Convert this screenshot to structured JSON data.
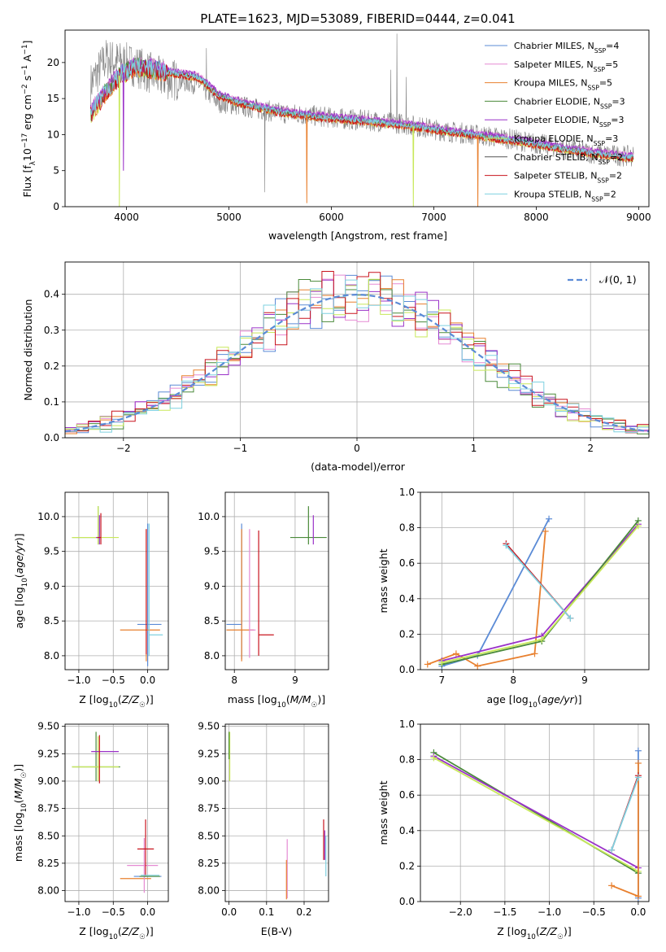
{
  "colors": {
    "chabrier_miles": "#5b8bd6",
    "salpeter_miles": "#e58ad3",
    "kroupa_miles": "#e8802f",
    "chabrier_elodie": "#4a8a3a",
    "salpeter_elodie": "#9a32c8",
    "kroupa_elodie": "#c8e85a",
    "chabrier_stelib": "#555555",
    "salpeter_stelib": "#c8141e",
    "kroupa_stelib": "#7fd1e0",
    "gauss": "#5b8bd6",
    "grid": "#b0b0b0"
  },
  "chart_data": [
    {
      "id": "spectrum",
      "type": "line",
      "title": "PLATE=1623, MJD=53089, FIBERID=0444, z=0.041",
      "xlabel": "wavelength [Angstrom, rest frame]",
      "ylabel": "Flux [f_λ10^-17 erg cm^-2 s^-1 A^-1]",
      "xlim": [
        3400,
        9100
      ],
      "ylim": [
        0,
        24.5
      ],
      "xticks": [
        "4000",
        "5000",
        "6000",
        "7000",
        "8000",
        "9000"
      ],
      "yticks": [
        "0",
        "5",
        "10",
        "15",
        "20"
      ],
      "grid": false,
      "legend": "top-right",
      "legend_entries": [
        "Chabrier MILES, N_SSP=4",
        "Salpeter MILES, N_SSP=5",
        "Kroupa MILES, N_SSP=5",
        "Chabrier ELODIE, N_SSP=3",
        "Salpeter ELODIE, N_SSP=3",
        "Kroupa ELODIE, N_SSP=3",
        "Chabrier STELIB, N_SSP=2",
        "Salpeter STELIB, N_SSP=2",
        "Kroupa STELIB, N_SSP=2"
      ],
      "data_continuum": {
        "x": [
          3650,
          3800,
          3950,
          4100,
          4300,
          4500,
          4700,
          4900,
          5100,
          5300,
          5500,
          5700,
          5900,
          6100,
          6300,
          6500,
          6700,
          6900,
          7100,
          7300,
          7500,
          7700,
          7900,
          8100,
          8300,
          8500,
          8700,
          8900
        ],
        "y": [
          17,
          20.5,
          20,
          19.5,
          18,
          17.5,
          17,
          14.5,
          14,
          13.5,
          13,
          12.8,
          12.5,
          12.2,
          12,
          11.8,
          11.5,
          11,
          10.5,
          10.2,
          9.8,
          9.5,
          9,
          8.5,
          8,
          7.5,
          7.2,
          7
        ]
      },
      "model_continuum": {
        "x": [
          3650,
          3800,
          3950,
          4100,
          4300,
          4500,
          4700,
          4900,
          5100,
          5300,
          5500,
          5700,
          5900,
          6100,
          6300,
          6500,
          6700,
          6900,
          7100,
          7300,
          7500,
          7700,
          7900,
          8100,
          8300,
          8500,
          8700,
          8900
        ],
        "y": [
          13,
          16,
          18.5,
          19.5,
          19,
          18.5,
          18,
          15.5,
          14.5,
          13.8,
          13.2,
          12.8,
          12.5,
          12.2,
          12,
          11.7,
          11.4,
          11,
          10.6,
          10.2,
          9.8,
          9.4,
          9,
          8.5,
          8,
          7.6,
          7.2,
          6.9
        ]
      },
      "model_dips": [
        {
          "x": 3930,
          "y": 0,
          "series": "kroupa_elodie"
        },
        {
          "x": 3970,
          "y": 5,
          "series": "salpeter_elodie"
        },
        {
          "x": 5760,
          "y": 0.5,
          "series": "kroupa_miles"
        },
        {
          "x": 6800,
          "y": 0,
          "series": "kroupa_elodie"
        },
        {
          "x": 7430,
          "y": 0,
          "series": "kroupa_miles"
        }
      ]
    },
    {
      "id": "residuals",
      "type": "line",
      "xlabel": "(data-model)/error",
      "ylabel": "Normed distribution",
      "xlim": [
        -2.5,
        2.5
      ],
      "ylim": [
        0,
        0.49
      ],
      "xticks": [
        "−2",
        "−1",
        "0",
        "1",
        "2"
      ],
      "yticks": [
        "0.0",
        "0.1",
        "0.2",
        "0.3",
        "0.4"
      ],
      "grid": true,
      "legend": "top-right",
      "legend_entries": [
        "𝒩(0, 1)"
      ],
      "gaussian": {
        "mean": 0,
        "sigma": 1
      }
    },
    {
      "id": "age_vs_Z",
      "type": "errorbar",
      "xlabel": "Z [log10(Z/Z☉)]",
      "ylabel": "age [log10(age/yr)]",
      "xlim": [
        -1.2,
        0.3
      ],
      "ylim": [
        7.8,
        10.35
      ],
      "xticks": [
        "−1.0",
        "−0.5",
        "0.0"
      ],
      "yticks": [
        "8.0",
        "8.5",
        "9.0",
        "9.5",
        "10.0"
      ],
      "grid": true,
      "points": [
        {
          "s": "chabrier_elodie",
          "x": -0.72,
          "y": 9.7,
          "xe": [
            0.38,
            0.0
          ],
          "ye": [
            0.1,
            0.45
          ]
        },
        {
          "s": "kroupa_elodie",
          "x": -0.72,
          "y": 9.7,
          "xe": [
            0.38,
            0.3
          ],
          "ye": [
            0.1,
            0.45
          ]
        },
        {
          "s": "salpeter_elodie",
          "x": -0.7,
          "y": 9.7,
          "xe": [
            0.05,
            0.0
          ],
          "ye": [
            0.1,
            0.32
          ]
        },
        {
          "s": "salpeter_stelib",
          "x": -0.68,
          "y": 9.7,
          "xe": [
            0.05,
            0.0
          ],
          "ye": [
            0.1,
            0.35
          ]
        },
        {
          "s": "chabrier_miles",
          "x": 0.0,
          "y": 8.45,
          "xe": [
            0.15,
            0.2
          ],
          "ye": [
            0.6,
            1.45
          ]
        },
        {
          "s": "kroupa_miles",
          "x": -0.02,
          "y": 8.37,
          "xe": [
            0.38,
            0.2
          ],
          "ye": [
            0.45,
            1.45
          ]
        },
        {
          "s": "kroupa_stelib",
          "x": 0.02,
          "y": 8.3,
          "xe": [
            0.0,
            0.2
          ],
          "ye": [
            0.3,
            1.6
          ]
        },
        {
          "s": "salpeter_stelib",
          "x": -0.02,
          "y": 8.37,
          "xe": [
            0.0,
            0.0
          ],
          "ye": [
            0.35,
            1.45
          ]
        }
      ]
    },
    {
      "id": "age_vs_mass",
      "type": "errorbar",
      "xlabel": "mass [log10(M/M☉)]",
      "ylabel": "",
      "xlim": [
        7.85,
        9.55
      ],
      "ylim": [
        7.8,
        10.35
      ],
      "xticks": [
        "8",
        "9"
      ],
      "yticks": [
        "8.0",
        "8.5",
        "9.0",
        "9.5",
        "10.0"
      ],
      "grid": true,
      "points": [
        {
          "s": "chabrier_miles",
          "x": 8.12,
          "y": 8.45,
          "xe": [
            0.25,
            0.0
          ],
          "ye": [
            0.5,
            1.45
          ]
        },
        {
          "s": "kroupa_miles",
          "x": 8.12,
          "y": 8.37,
          "xe": [
            0.25,
            0.2
          ],
          "ye": [
            0.45,
            1.45
          ]
        },
        {
          "s": "salpeter_miles",
          "x": 8.25,
          "y": 8.37,
          "xe": [
            0.0,
            0.1
          ],
          "ye": [
            0.4,
            1.45
          ]
        },
        {
          "s": "salpeter_stelib",
          "x": 8.4,
          "y": 8.3,
          "xe": [
            0.0,
            0.25
          ],
          "ye": [
            0.3,
            1.5
          ]
        },
        {
          "s": "chabrier_elodie",
          "x": 9.22,
          "y": 9.7,
          "xe": [
            0.3,
            0.3
          ],
          "ye": [
            0.1,
            0.45
          ]
        },
        {
          "s": "salpeter_elodie",
          "x": 9.3,
          "y": 9.7,
          "xe": [
            0.0,
            0.0
          ],
          "ye": [
            0.1,
            0.32
          ]
        }
      ]
    },
    {
      "id": "weight_vs_age",
      "type": "line",
      "xlabel": "age [log10(age/yr)]",
      "ylabel": "mass weight",
      "xlim": [
        6.7,
        9.9
      ],
      "ylim": [
        0,
        1.0
      ],
      "xticks": [
        "7",
        "8",
        "9"
      ],
      "yticks": [
        "0.0",
        "0.2",
        "0.4",
        "0.6",
        "0.8",
        "1.0"
      ],
      "grid": true,
      "series": [
        {
          "s": "chabrier_miles",
          "x": [
            7.0,
            7.5,
            8.5
          ],
          "y": [
            0.02,
            0.08,
            0.85
          ]
        },
        {
          "s": "kroupa_miles",
          "x": [
            6.8,
            7.2,
            7.5,
            8.3,
            8.45
          ],
          "y": [
            0.03,
            0.09,
            0.02,
            0.09,
            0.78
          ]
        },
        {
          "s": "salpeter_elodie",
          "x": [
            7.0,
            8.4,
            9.75
          ],
          "y": [
            0.05,
            0.19,
            0.82
          ]
        },
        {
          "s": "chabrier_elodie",
          "x": [
            7.0,
            8.4,
            9.75
          ],
          "y": [
            0.03,
            0.16,
            0.84
          ]
        },
        {
          "s": "kroupa_elodie",
          "x": [
            7.0,
            8.4,
            9.75
          ],
          "y": [
            0.04,
            0.17,
            0.81
          ]
        },
        {
          "s": "salpeter_stelib",
          "x": [
            7.9,
            8.8
          ],
          "y": [
            0.71,
            0.29
          ]
        },
        {
          "s": "kroupa_stelib",
          "x": [
            7.9,
            8.8
          ],
          "y": [
            0.7,
            0.29
          ]
        }
      ]
    },
    {
      "id": "mass_vs_Z",
      "type": "errorbar",
      "xlabel": "Z [log10(Z/Z☉)]",
      "ylabel": "mass [log10(M/M☉)]",
      "xlim": [
        -1.2,
        0.3
      ],
      "ylim": [
        7.9,
        9.52
      ],
      "xticks": [
        "−1.0",
        "−0.5",
        "0.0"
      ],
      "yticks": [
        "8.00",
        "8.25",
        "8.50",
        "8.75",
        "9.00",
        "9.25",
        "9.50"
      ],
      "grid": true,
      "points": [
        {
          "s": "chabrier_elodie",
          "x": -0.75,
          "y": 9.13,
          "xe": [
            0.35,
            0.35
          ],
          "ye": [
            0.13,
            0.32
          ]
        },
        {
          "s": "kroupa_elodie",
          "x": -0.72,
          "y": 9.13,
          "xe": [
            0.38,
            0.3
          ],
          "ye": [
            0.13,
            0.28
          ]
        },
        {
          "s": "salpeter_elodie",
          "x": -0.62,
          "y": 9.27,
          "xe": [
            0.2,
            0.2
          ],
          "ye": [
            0.0,
            0.0
          ]
        },
        {
          "s": "salpeter_stelib",
          "x": -0.7,
          "y": 9.2,
          "xe": [
            0.0,
            0.0
          ],
          "ye": [
            0.22,
            0.22
          ]
        },
        {
          "s": "chabrier_miles",
          "x": 0.0,
          "y": 8.13,
          "xe": [
            0.2,
            0.2
          ],
          "ye": [
            0.0,
            0.0
          ]
        },
        {
          "s": "kroupa_miles",
          "x": -0.1,
          "y": 8.11,
          "xe": [
            0.3,
            0.15
          ],
          "ye": [
            0.0,
            0.0
          ]
        },
        {
          "s": "salpeter_miles",
          "x": -0.05,
          "y": 8.23,
          "xe": [
            0.25,
            0.2
          ],
          "ye": [
            0.25,
            0.25
          ]
        },
        {
          "s": "salpeter_stelib",
          "x": -0.03,
          "y": 8.38,
          "xe": [
            0.12,
            0.12
          ],
          "ye": [
            0.25,
            0.27
          ]
        },
        {
          "s": "chabrier_elodie",
          "x": 0.0,
          "y": 8.13,
          "xe": [
            0.12,
            0.18
          ],
          "ye": [
            0.0,
            0.0
          ]
        },
        {
          "s": "kroupa_stelib",
          "x": 0.0,
          "y": 8.14,
          "xe": [
            0.1,
            0.17
          ],
          "ye": [
            0.0,
            0.0
          ]
        }
      ]
    },
    {
      "id": "mass_vs_ebv",
      "type": "errorbar",
      "xlabel": "E(B-V)",
      "ylabel": "",
      "xlim": [
        -0.01,
        0.265
      ],
      "ylim": [
        7.9,
        9.52
      ],
      "xticks": [
        "0.0",
        "0.1",
        "0.2"
      ],
      "yticks": [
        "8.00",
        "8.25",
        "8.50",
        "8.75",
        "9.00",
        "9.25",
        "9.50"
      ],
      "grid": true,
      "points": [
        {
          "s": "kroupa_elodie",
          "x": 0.002,
          "y": 9.2,
          "xe": [
            0.0,
            0.0
          ],
          "ye": [
            0.2,
            0.25
          ]
        },
        {
          "s": "chabrier_elodie",
          "x": 0.0,
          "y": 9.3,
          "xe": [
            0.0,
            0.0
          ],
          "ye": [
            0.1,
            0.15
          ]
        },
        {
          "s": "salpeter_miles",
          "x": 0.155,
          "y": 8.2,
          "xe": [
            0.0,
            0.0
          ],
          "ye": [
            0.27,
            0.27
          ]
        },
        {
          "s": "kroupa_miles",
          "x": 0.153,
          "y": 8.1,
          "xe": [
            0.0,
            0.0
          ],
          "ye": [
            0.18,
            0.18
          ]
        },
        {
          "s": "salpeter_stelib",
          "x": 0.252,
          "y": 8.45,
          "xe": [
            0.0,
            0.0
          ],
          "ye": [
            0.17,
            0.2
          ]
        },
        {
          "s": "kroupa_stelib",
          "x": 0.258,
          "y": 8.3,
          "xe": [
            0.0,
            0.0
          ],
          "ye": [
            0.17,
            0.2
          ]
        },
        {
          "s": "salpeter_elodie",
          "x": 0.255,
          "y": 8.4,
          "xe": [
            0.0,
            0.0
          ],
          "ye": [
            0.12,
            0.15
          ]
        }
      ]
    },
    {
      "id": "weight_vs_Z",
      "type": "line",
      "xlabel": "Z [log10(Z/Z☉)]",
      "ylabel": "mass weight",
      "xlim": [
        -2.45,
        0.12
      ],
      "ylim": [
        0,
        1.0
      ],
      "xticks": [
        "−2.0",
        "−1.5",
        "−1.0",
        "−0.5",
        "0.0"
      ],
      "yticks": [
        "0.0",
        "0.2",
        "0.4",
        "0.6",
        "0.8",
        "1.0"
      ],
      "grid": true,
      "series": [
        {
          "s": "chabrier_elodie",
          "x": [
            -2.3,
            0.0
          ],
          "y": [
            0.84,
            0.16
          ]
        },
        {
          "s": "salpeter_elodie",
          "x": [
            -2.3,
            0.0
          ],
          "y": [
            0.82,
            0.19
          ]
        },
        {
          "s": "kroupa_elodie",
          "x": [
            -2.3,
            0.0
          ],
          "y": [
            0.81,
            0.17
          ]
        },
        {
          "s": "chabrier_miles",
          "x": [
            0.0,
            0.0
          ],
          "y": [
            0.02,
            0.85
          ]
        },
        {
          "s": "kroupa_miles",
          "x": [
            -0.3,
            0.0,
            0.0
          ],
          "y": [
            0.09,
            0.03,
            0.78
          ]
        },
        {
          "s": "salpeter_stelib",
          "x": [
            -0.3,
            0.0
          ],
          "y": [
            0.29,
            0.71
          ]
        },
        {
          "s": "kroupa_stelib",
          "x": [
            -0.3,
            0.0
          ],
          "y": [
            0.29,
            0.7
          ]
        }
      ]
    }
  ]
}
